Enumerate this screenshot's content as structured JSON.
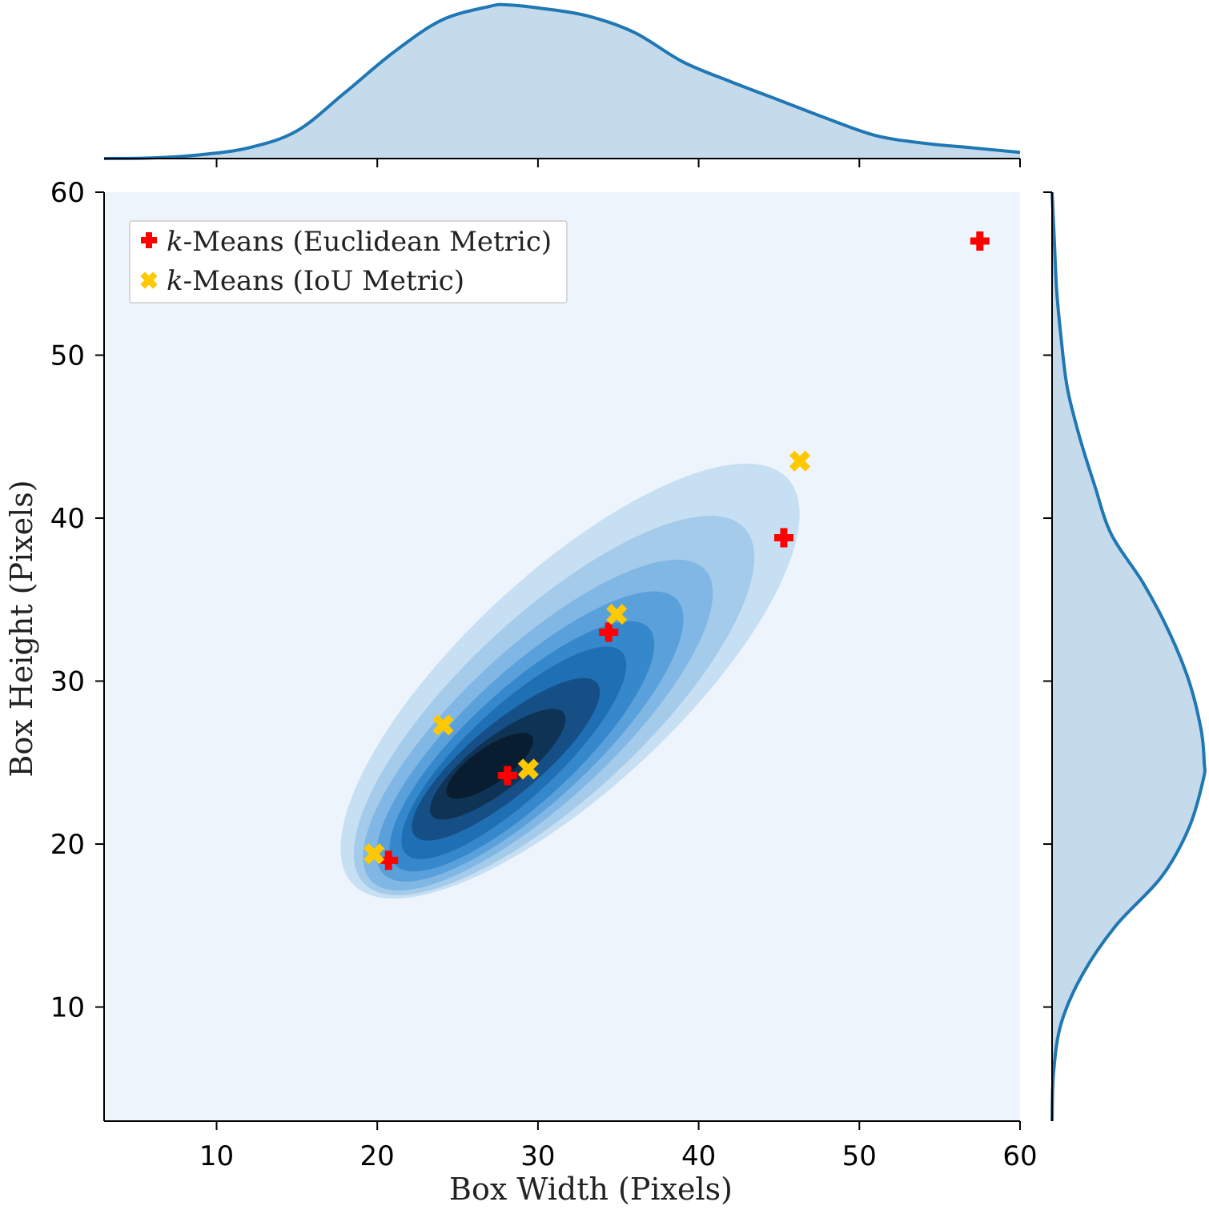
{
  "chart_data": {
    "type": "scatter",
    "title": "",
    "xlabel": "Box Width (Pixels)",
    "ylabel": "Box Height (Pixels)",
    "xlim": [
      3,
      60
    ],
    "ylim": [
      3,
      60
    ],
    "xticks": [
      10,
      20,
      30,
      40,
      50,
      60
    ],
    "yticks": [
      10,
      20,
      30,
      40,
      50,
      60
    ],
    "xtick_labels": [
      "10",
      "20",
      "30",
      "40",
      "50",
      "60"
    ],
    "ytick_labels": [
      "10",
      "20",
      "30",
      "40",
      "50",
      "60"
    ],
    "legend_position": "top-left",
    "series": [
      {
        "name": "k-Means (Euclidean Metric)",
        "legend_italic": "k",
        "legend_rest": "-Means (Euclidean Metric)",
        "marker": "plus",
        "color": "#ff0000",
        "points": [
          [
            57.5,
            57.0
          ],
          [
            45.3,
            38.8
          ],
          [
            34.4,
            33.0
          ],
          [
            28.1,
            24.2
          ],
          [
            20.7,
            19.0
          ]
        ]
      },
      {
        "name": "k-Means (IoU Metric)",
        "legend_italic": "k",
        "legend_rest": "-Means (IoU Metric)",
        "marker": "x",
        "color": "#ffc800",
        "points": [
          [
            46.3,
            43.5
          ],
          [
            34.9,
            34.1
          ],
          [
            24.1,
            27.3
          ],
          [
            29.4,
            24.6
          ],
          [
            19.8,
            19.4
          ]
        ]
      }
    ],
    "density_2d": {
      "kind": "filled-kde",
      "background_color": "#edf4fc",
      "level_colors": [
        "#c6dff3",
        "#a4cbea",
        "#80b7e4",
        "#5aa0da",
        "#3588cb",
        "#1f6fb4",
        "#164f86",
        "#0f3354",
        "#081d2f"
      ],
      "levels": [
        {
          "center": [
            32,
            30
          ],
          "rx": 18.5,
          "ry": 6.6,
          "angle_deg": 43
        },
        {
          "center": [
            31,
            28.5
          ],
          "rx": 16.2,
          "ry": 5.6,
          "angle_deg": 43
        },
        {
          "center": [
            30,
            27.3
          ],
          "rx": 14.2,
          "ry": 4.7,
          "angle_deg": 43
        },
        {
          "center": [
            29.5,
            26.6
          ],
          "rx": 12.5,
          "ry": 4.0,
          "angle_deg": 43
        },
        {
          "center": [
            29,
            26
          ],
          "rx": 10.8,
          "ry": 3.4,
          "angle_deg": 43
        },
        {
          "center": [
            28.5,
            25.6
          ],
          "rx": 9.2,
          "ry": 2.8,
          "angle_deg": 43
        },
        {
          "center": [
            28,
            25.2
          ],
          "rx": 7.4,
          "ry": 2.2,
          "angle_deg": 40
        },
        {
          "center": [
            27.5,
            24.9
          ],
          "rx": 5.2,
          "ry": 1.6,
          "angle_deg": 38
        },
        {
          "center": [
            27,
            24.8
          ],
          "rx": 3.2,
          "ry": 1.1,
          "angle_deg": 35
        }
      ]
    },
    "marginal_x": {
      "color": "#1f77b4",
      "fill": "#c5daeb",
      "x": [
        3,
        6,
        9,
        12,
        15,
        18,
        21,
        24,
        27,
        28,
        30,
        33,
        36,
        39,
        42,
        45,
        48,
        51,
        54,
        57,
        60
      ],
      "density": [
        0.0,
        0.004,
        0.025,
        0.07,
        0.18,
        0.43,
        0.69,
        0.9,
        0.99,
        1.0,
        0.98,
        0.93,
        0.82,
        0.63,
        0.5,
        0.38,
        0.26,
        0.15,
        0.1,
        0.07,
        0.04
      ]
    },
    "marginal_y": {
      "color": "#1f77b4",
      "fill": "#c5daeb",
      "y": [
        3,
        6,
        9,
        12,
        15,
        18,
        21,
        24,
        25,
        27,
        30,
        33,
        36,
        39,
        42,
        45,
        48,
        51,
        54,
        57,
        60
      ],
      "density": [
        0.0,
        0.01,
        0.06,
        0.2,
        0.42,
        0.72,
        0.9,
        0.995,
        1.0,
        0.98,
        0.9,
        0.77,
        0.6,
        0.39,
        0.28,
        0.18,
        0.1,
        0.06,
        0.03,
        0.015,
        0.0
      ]
    }
  }
}
